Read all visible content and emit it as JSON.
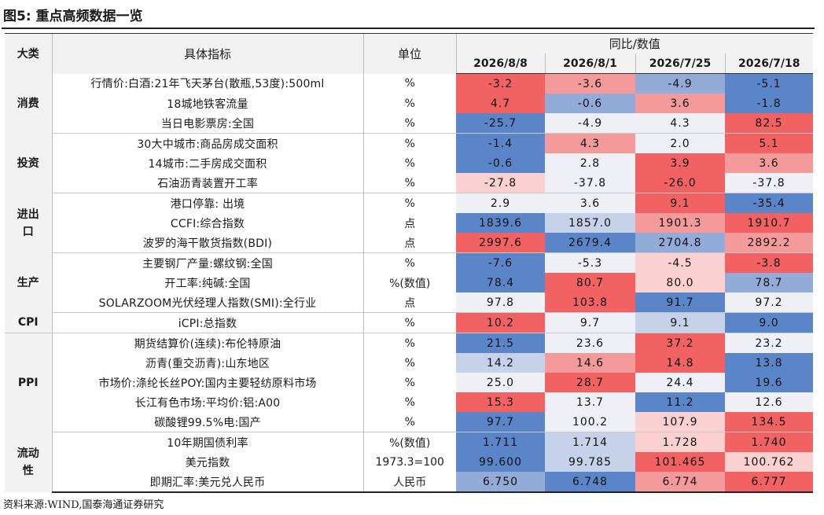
{
  "title": "图5:  重点高频数据一览",
  "header": {
    "category": "大类",
    "indicator": "具体指标",
    "unit": "单位",
    "group": "同比/数值",
    "dates": [
      "2026/8/8",
      "2026/8/1",
      "2026/7/25",
      "2026/7/18"
    ]
  },
  "colors": {
    "deep_red": "#f26262",
    "mid_red": "#f59a9a",
    "light_red": "#fbd0d0",
    "pale": "#eef0f6",
    "light_blue": "#c5d2ea",
    "mid_blue": "#93abd9",
    "deep_blue": "#5a85c9"
  },
  "rows": [
    {
      "cat": "消费",
      "name": "行情价:白酒:21年飞天茅台(散瓶,53度):500ml",
      "unit": "%",
      "values": [
        "-3.2",
        "-3.6",
        "-4.9",
        "-5.1"
      ],
      "heat": [
        "deep_red",
        "mid_red",
        "mid_blue",
        "deep_blue"
      ]
    },
    {
      "cat": "",
      "name": "18城地铁客流量",
      "unit": "%",
      "values": [
        "4.7",
        "-0.6",
        "3.6",
        "-1.8"
      ],
      "heat": [
        "deep_red",
        "mid_blue",
        "mid_red",
        "deep_blue"
      ]
    },
    {
      "cat": "",
      "name": "当日电影票房:全国",
      "unit": "%",
      "values": [
        "-25.7",
        "-4.9",
        "4.3",
        "82.5"
      ],
      "heat": [
        "deep_blue",
        "pale",
        "pale",
        "deep_red"
      ]
    },
    {
      "cat": "投资",
      "name": "30大中城市:商品房成交面积",
      "unit": "%",
      "values": [
        "-1.4",
        "4.3",
        "2.0",
        "5.1"
      ],
      "heat": [
        "deep_blue",
        "mid_red",
        "pale",
        "deep_red"
      ]
    },
    {
      "cat": "",
      "name": "14城市:二手房成交面积",
      "unit": "%",
      "values": [
        "-0.6",
        "2.8",
        "3.9",
        "3.6"
      ],
      "heat": [
        "deep_blue",
        "pale",
        "deep_red",
        "mid_red"
      ]
    },
    {
      "cat": "",
      "name": "石油沥青装置开工率",
      "unit": "%",
      "values": [
        "-27.8",
        "-37.8",
        "-26.0",
        "-37.8"
      ],
      "heat": [
        "light_red",
        "pale",
        "deep_red",
        "pale"
      ]
    },
    {
      "cat": "进出口",
      "name": "港口停靠: 出境",
      "unit": "%",
      "values": [
        "2.9",
        "3.6",
        "9.1",
        "-35.4"
      ],
      "heat": [
        "pale",
        "pale",
        "deep_red",
        "deep_blue"
      ]
    },
    {
      "cat": "",
      "name": "CCFI:综合指数",
      "unit": "点",
      "values": [
        "1839.6",
        "1857.0",
        "1901.3",
        "1910.7"
      ],
      "heat": [
        "deep_blue",
        "light_blue",
        "mid_red",
        "deep_red"
      ]
    },
    {
      "cat": "",
      "name": "波罗的海干散货指数(BDI)",
      "unit": "点",
      "values": [
        "2997.6",
        "2679.4",
        "2704.8",
        "2892.2"
      ],
      "heat": [
        "deep_red",
        "deep_blue",
        "mid_blue",
        "mid_red"
      ]
    },
    {
      "cat": "生产",
      "name": "主要钢厂产量:螺纹钢:全国",
      "unit": "%",
      "values": [
        "-7.6",
        "-5.3",
        "-4.5",
        "-3.8"
      ],
      "heat": [
        "deep_blue",
        "pale",
        "light_red",
        "deep_red"
      ]
    },
    {
      "cat": "",
      "name": "开工率:纯碱:全国",
      "unit": "%(数值)",
      "values": [
        "78.4",
        "80.7",
        "80.0",
        "78.7"
      ],
      "heat": [
        "deep_blue",
        "deep_red",
        "light_red",
        "mid_blue"
      ]
    },
    {
      "cat": "",
      "name": "SOLARZOOM光伏经理人指数(SMI):全行业",
      "unit": "点",
      "values": [
        "97.8",
        "103.8",
        "91.7",
        "97.2"
      ],
      "heat": [
        "pale",
        "deep_red",
        "deep_blue",
        "pale"
      ]
    },
    {
      "cat": "CPI",
      "name": "iCPI:总指数",
      "unit": "%",
      "values": [
        "10.2",
        "9.7",
        "9.1",
        "9.0"
      ],
      "heat": [
        "deep_red",
        "pale",
        "light_blue",
        "deep_blue"
      ]
    },
    {
      "cat": "PPI",
      "name": "期货结算价(连续):布伦特原油",
      "unit": "%",
      "values": [
        "21.5",
        "23.6",
        "37.2",
        "23.2"
      ],
      "heat": [
        "deep_blue",
        "pale",
        "deep_red",
        "pale"
      ]
    },
    {
      "cat": "",
      "name": "沥青(重交沥青):山东地区",
      "unit": "%",
      "values": [
        "14.2",
        "14.6",
        "14.8",
        "13.8"
      ],
      "heat": [
        "light_blue",
        "mid_red",
        "deep_red",
        "deep_blue"
      ]
    },
    {
      "cat": "",
      "name": "市场价:涤纶长丝POY:国内主要轻纺原料市场",
      "unit": "%",
      "values": [
        "25.0",
        "28.7",
        "24.4",
        "19.6"
      ],
      "heat": [
        "pale",
        "deep_red",
        "pale",
        "deep_blue"
      ]
    },
    {
      "cat": "",
      "name": "长江有色市场:平均价:铝:A00",
      "unit": "%",
      "values": [
        "15.3",
        "13.7",
        "11.2",
        "12.6"
      ],
      "heat": [
        "deep_red",
        "pale",
        "deep_blue",
        "pale"
      ]
    },
    {
      "cat": "",
      "name": "碳酸锂99.5%电:国产",
      "unit": "%",
      "values": [
        "97.7",
        "100.2",
        "107.9",
        "134.5"
      ],
      "heat": [
        "deep_blue",
        "pale",
        "light_red",
        "deep_red"
      ]
    },
    {
      "cat": "流动性",
      "name": "10年期国债利率",
      "unit": "%(数值)",
      "values": [
        "1.711",
        "1.714",
        "1.728",
        "1.740"
      ],
      "heat": [
        "deep_blue",
        "light_blue",
        "light_red",
        "deep_red"
      ]
    },
    {
      "cat": "",
      "name": "美元指数",
      "unit": "1973.3=100",
      "values": [
        "99.600",
        "99.785",
        "101.465",
        "100.762"
      ],
      "heat": [
        "deep_blue",
        "light_blue",
        "deep_red",
        "light_red"
      ]
    },
    {
      "cat": "",
      "name": "即期汇率:美元兑人民币",
      "unit": "人民币",
      "values": [
        "6.750",
        "6.748",
        "6.774",
        "6.777"
      ],
      "heat": [
        "mid_blue",
        "deep_blue",
        "mid_red",
        "deep_red"
      ]
    }
  ],
  "categories": [
    {
      "label": "消费",
      "span": 3
    },
    {
      "label": "投资",
      "span": 3
    },
    {
      "label": "进出口",
      "span": 3
    },
    {
      "label": "生产",
      "span": 3
    },
    {
      "label": "CPI",
      "span": 1
    },
    {
      "label": "PPI",
      "span": 5
    },
    {
      "label": "流动性",
      "span": 3
    }
  ],
  "source": "资料来源:WIND,国泰海通证券研究"
}
